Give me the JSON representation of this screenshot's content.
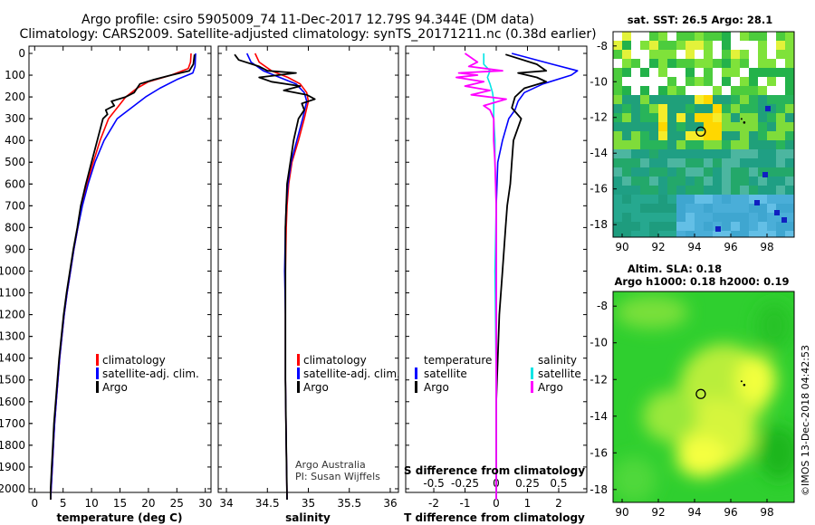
{
  "header": {
    "line1": "Argo profile: csiro 5905009_74 11-Dec-2017 12.79S 94.344E (DM data)",
    "line2": "Climatology: CARS2009. Satellite-adjusted climatology: synTS_20171211.nc (0.38d earlier)"
  },
  "colors": {
    "climatology": "#ff0000",
    "satellite": "#0000ff",
    "argo": "#000000",
    "sat_salinity": "#00e5e5",
    "argo_salinity_diff": "#ff00ff"
  },
  "chart_data": [
    {
      "id": "temperature",
      "type": "line",
      "xlabel": "temperature (deg C)",
      "ylabel": "",
      "xlim": [
        -1,
        31
      ],
      "ylim": [
        2050,
        0
      ],
      "xticks": [
        "0",
        "5",
        "10",
        "15",
        "20",
        "25",
        "30"
      ],
      "yticks": [
        "0",
        "100",
        "200",
        "300",
        "400",
        "500",
        "600",
        "700",
        "800",
        "900",
        "1000",
        "1100",
        "1200",
        "1300",
        "1400",
        "1500",
        "1600",
        "1700",
        "1800",
        "1900",
        "2000"
      ],
      "legend": [
        "climatology",
        "satellite-adj. clim.",
        "Argo"
      ],
      "series": [
        {
          "name": "climatology",
          "color": "#ff0000",
          "points": [
            [
              27.5,
              0
            ],
            [
              27.4,
              40
            ],
            [
              27,
              70
            ],
            [
              24,
              100
            ],
            [
              20,
              130
            ],
            [
              18,
              160
            ],
            [
              16,
              200
            ],
            [
              14.5,
              250
            ],
            [
              13,
              300
            ],
            [
              11.5,
              400
            ],
            [
              10.3,
              500
            ],
            [
              9.2,
              600
            ],
            [
              8.3,
              700
            ],
            [
              7.6,
              800
            ],
            [
              6.9,
              900
            ],
            [
              6.3,
              1000
            ],
            [
              5.7,
              1100
            ],
            [
              5.2,
              1200
            ],
            [
              4.8,
              1300
            ],
            [
              4.4,
              1400
            ],
            [
              4.1,
              1500
            ],
            [
              3.8,
              1600
            ],
            [
              3.5,
              1700
            ],
            [
              3.3,
              1800
            ],
            [
              3.1,
              1900
            ],
            [
              2.9,
              2000
            ],
            [
              2.8,
              2050
            ]
          ]
        },
        {
          "name": "satellite-adj. clim.",
          "color": "#0000ff",
          "points": [
            [
              28.3,
              0
            ],
            [
              28.2,
              60
            ],
            [
              27.8,
              90
            ],
            [
              25,
              120
            ],
            [
              22,
              160
            ],
            [
              19.5,
              200
            ],
            [
              17,
              250
            ],
            [
              14.5,
              300
            ],
            [
              12.2,
              400
            ],
            [
              10.6,
              500
            ],
            [
              9.4,
              600
            ],
            [
              8.4,
              700
            ],
            [
              7.6,
              800
            ],
            [
              6.9,
              900
            ],
            [
              6.3,
              1000
            ],
            [
              5.7,
              1100
            ],
            [
              5.2,
              1200
            ],
            [
              4.8,
              1300
            ],
            [
              4.4,
              1400
            ],
            [
              4.1,
              1500
            ],
            [
              3.8,
              1600
            ],
            [
              3.5,
              1700
            ],
            [
              3.3,
              1800
            ],
            [
              3.1,
              1900
            ],
            [
              2.9,
              2000
            ],
            [
              2.8,
              2050
            ]
          ]
        },
        {
          "name": "Argo",
          "color": "#000000",
          "points": [
            [
              28.1,
              5
            ],
            [
              27.9,
              50
            ],
            [
              27.2,
              80
            ],
            [
              24,
              100
            ],
            [
              21,
              120
            ],
            [
              18.5,
              140
            ],
            [
              18,
              160
            ],
            [
              17.5,
              180
            ],
            [
              16,
              200
            ],
            [
              13.5,
              220
            ],
            [
              14,
              240
            ],
            [
              12.5,
              260
            ],
            [
              12.8,
              280
            ],
            [
              12,
              300
            ],
            [
              11,
              400
            ],
            [
              10,
              500
            ],
            [
              9,
              600
            ],
            [
              8.1,
              700
            ],
            [
              7.5,
              800
            ],
            [
              6.8,
              900
            ],
            [
              6.2,
              1000
            ],
            [
              5.6,
              1100
            ],
            [
              5.1,
              1200
            ],
            [
              4.7,
              1300
            ],
            [
              4.3,
              1400
            ],
            [
              4,
              1500
            ],
            [
              3.7,
              1600
            ],
            [
              3.4,
              1700
            ],
            [
              3.2,
              1800
            ],
            [
              3,
              1900
            ],
            [
              2.8,
              2000
            ],
            [
              2.8,
              2050
            ]
          ]
        }
      ]
    },
    {
      "id": "salinity",
      "type": "line",
      "xlabel": "salinity",
      "xlim": [
        33.9,
        36.1
      ],
      "ylim": [
        2050,
        0
      ],
      "xticks": [
        "34",
        "34.5",
        "35",
        "35.5",
        "36"
      ],
      "legend": [
        "climatology",
        "satellite-adj. clim.",
        "Argo"
      ],
      "annotations": [
        "Argo Australia",
        "PI: Susan Wijffels"
      ],
      "series": [
        {
          "name": "climatology",
          "color": "#ff0000",
          "points": [
            [
              34.35,
              0
            ],
            [
              34.4,
              40
            ],
            [
              34.55,
              80
            ],
            [
              34.75,
              110
            ],
            [
              34.9,
              140
            ],
            [
              34.98,
              180
            ],
            [
              35.0,
              220
            ],
            [
              34.95,
              300
            ],
            [
              34.88,
              400
            ],
            [
              34.8,
              500
            ],
            [
              34.76,
              600
            ],
            [
              34.74,
              700
            ],
            [
              34.73,
              800
            ],
            [
              34.72,
              1000
            ],
            [
              34.72,
              1200
            ],
            [
              34.72,
              1500
            ],
            [
              34.73,
              1800
            ],
            [
              34.74,
              2050
            ]
          ]
        },
        {
          "name": "satellite-adj. clim.",
          "color": "#0000ff",
          "points": [
            [
              34.25,
              0
            ],
            [
              34.3,
              40
            ],
            [
              34.45,
              80
            ],
            [
              34.65,
              110
            ],
            [
              34.85,
              140
            ],
            [
              34.95,
              180
            ],
            [
              34.98,
              220
            ],
            [
              34.93,
              300
            ],
            [
              34.86,
              400
            ],
            [
              34.79,
              500
            ],
            [
              34.75,
              600
            ],
            [
              34.73,
              700
            ],
            [
              34.72,
              800
            ],
            [
              34.71,
              1000
            ],
            [
              34.72,
              1200
            ],
            [
              34.72,
              1500
            ],
            [
              34.73,
              1800
            ],
            [
              34.74,
              2050
            ]
          ]
        },
        {
          "name": "Argo",
          "color": "#000000",
          "points": [
            [
              34.1,
              5
            ],
            [
              34.15,
              30
            ],
            [
              34.4,
              60
            ],
            [
              34.5,
              80
            ],
            [
              34.85,
              90
            ],
            [
              34.4,
              110
            ],
            [
              34.55,
              130
            ],
            [
              34.9,
              150
            ],
            [
              34.7,
              170
            ],
            [
              34.98,
              190
            ],
            [
              35.08,
              210
            ],
            [
              34.92,
              230
            ],
            [
              34.95,
              260
            ],
            [
              34.88,
              300
            ],
            [
              34.82,
              400
            ],
            [
              34.78,
              500
            ],
            [
              34.74,
              600
            ],
            [
              34.73,
              700
            ],
            [
              34.72,
              800
            ],
            [
              34.72,
              1000
            ],
            [
              34.72,
              1200
            ],
            [
              34.72,
              1500
            ],
            [
              34.73,
              1800
            ],
            [
              34.74,
              2050
            ]
          ]
        }
      ]
    },
    {
      "id": "tdiff",
      "type": "line",
      "xlabel": "T difference from climatology",
      "xlim": [
        -2.9,
        2.9
      ],
      "ylim": [
        2050,
        0
      ],
      "xticks": [
        "-2",
        "-1",
        "0",
        "1",
        "2"
      ],
      "secondary_xlabel": "S difference from climatology",
      "secondary_xticks": [
        "-0.5",
        "-0.25",
        "0",
        "0.25",
        "0.5"
      ],
      "secondary_xlim": [
        -0.725,
        0.725
      ],
      "legend": [
        "temperature",
        "satellite",
        "Argo",
        "salinity",
        "satellite",
        "Argo"
      ],
      "series": [
        {
          "name": "temperature satellite",
          "axis": "T",
          "color": "#0000ff",
          "points": [
            [
              0.5,
              0
            ],
            [
              1.8,
              50
            ],
            [
              2.6,
              80
            ],
            [
              2.4,
              100
            ],
            [
              1.5,
              140
            ],
            [
              0.9,
              180
            ],
            [
              0.7,
              220
            ],
            [
              0.6,
              260
            ],
            [
              0.4,
              300
            ],
            [
              0.2,
              400
            ],
            [
              0.05,
              500
            ],
            [
              0,
              700
            ],
            [
              0,
              1000
            ],
            [
              0,
              1500
            ],
            [
              0,
              2050
            ]
          ]
        },
        {
          "name": "temperature Argo",
          "axis": "T",
          "color": "#000000",
          "points": [
            [
              0.3,
              5
            ],
            [
              1.3,
              50
            ],
            [
              1.6,
              80
            ],
            [
              0.7,
              90
            ],
            [
              1.3,
              110
            ],
            [
              1.6,
              130
            ],
            [
              0.9,
              160
            ],
            [
              0.6,
              200
            ],
            [
              0.5,
              250
            ],
            [
              0.8,
              300
            ],
            [
              0.55,
              400
            ],
            [
              0.5,
              500
            ],
            [
              0.45,
              600
            ],
            [
              0.35,
              700
            ],
            [
              0.3,
              800
            ],
            [
              0.25,
              900
            ],
            [
              0.2,
              1000
            ],
            [
              0.1,
              1200
            ],
            [
              0.05,
              1400
            ],
            [
              0,
              1600
            ],
            [
              0,
              2050
            ]
          ]
        },
        {
          "name": "salinity satellite",
          "axis": "S",
          "color": "#00e5e5",
          "points": [
            [
              -0.1,
              0
            ],
            [
              -0.1,
              50
            ],
            [
              -0.05,
              80
            ],
            [
              -0.07,
              110
            ],
            [
              -0.05,
              140
            ],
            [
              -0.03,
              180
            ],
            [
              -0.02,
              220
            ],
            [
              -0.02,
              300
            ],
            [
              -0.01,
              400
            ],
            [
              -0.01,
              500
            ],
            [
              0,
              700
            ],
            [
              -0.01,
              1000
            ],
            [
              0,
              1500
            ],
            [
              0,
              2050
            ]
          ]
        },
        {
          "name": "salinity Argo",
          "axis": "S",
          "color": "#ff00ff",
          "points": [
            [
              -0.25,
              0
            ],
            [
              -0.15,
              40
            ],
            [
              -0.22,
              60
            ],
            [
              0.05,
              80
            ],
            [
              -0.3,
              90
            ],
            [
              -0.15,
              100
            ],
            [
              -0.32,
              110
            ],
            [
              -0.1,
              130
            ],
            [
              -0.25,
              150
            ],
            [
              -0.05,
              170
            ],
            [
              -0.2,
              190
            ],
            [
              0.08,
              210
            ],
            [
              -0.1,
              240
            ],
            [
              -0.05,
              260
            ],
            [
              -0.02,
              300
            ],
            [
              -0.02,
              400
            ],
            [
              -0.01,
              500
            ],
            [
              0,
              700
            ],
            [
              0,
              1000
            ],
            [
              0,
              1500
            ],
            [
              0,
              2050
            ]
          ]
        }
      ]
    },
    {
      "id": "sst_map",
      "type": "heatmap",
      "title": "sat. SST: 26.5 Argo: 28.1",
      "xlim": [
        89.5,
        99.5
      ],
      "ylim": [
        -18.7,
        -7.2
      ],
      "xticks": [
        "90",
        "92",
        "94",
        "96",
        "98"
      ],
      "yticks": [
        "-8",
        "-10",
        "-12",
        "-14",
        "-16",
        "-18"
      ],
      "marker": {
        "lon": 94.344,
        "lat": -12.79
      }
    },
    {
      "id": "sla_map",
      "type": "heatmap",
      "title_line1": "Altim. SLA: 0.18",
      "title_line2": "Argo h1000: 0.18 h2000: 0.19",
      "xlim": [
        89.5,
        99.5
      ],
      "ylim": [
        -18.7,
        -7.2
      ],
      "xticks": [
        "90",
        "92",
        "94",
        "96",
        "98"
      ],
      "yticks": [
        "-8",
        "-10",
        "-12",
        "-14",
        "-16",
        "-18"
      ],
      "marker": {
        "lon": 94.344,
        "lat": -12.79
      }
    }
  ],
  "credit": "©IMOS 13-Dec-2018 04:42:53"
}
